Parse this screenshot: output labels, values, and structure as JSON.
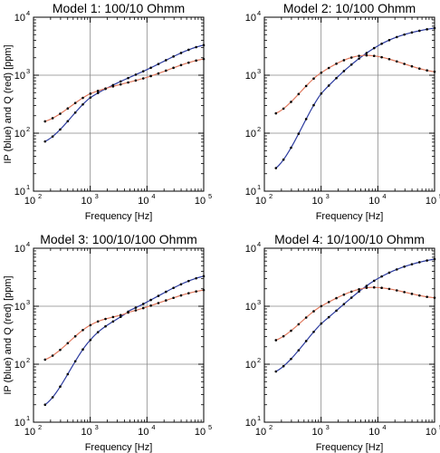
{
  "chart_data": [
    {
      "type": "line",
      "title": "Model 1: 100/10 Ohmm",
      "xlabel": "Frequency [Hz]",
      "ylabel": "IP (blue) and Q (red) [ppm]",
      "xscale": "log",
      "yscale": "log",
      "xlim": [
        100,
        100000
      ],
      "ylim": [
        10,
        10000
      ],
      "xticks": [
        {
          "base": "10",
          "exp": "2"
        },
        {
          "base": "10",
          "exp": "3"
        },
        {
          "base": "10",
          "exp": "4"
        },
        {
          "base": "10",
          "exp": "5"
        }
      ],
      "yticks": [
        {
          "base": "10",
          "exp": "1"
        },
        {
          "base": "10",
          "exp": "2"
        },
        {
          "base": "10",
          "exp": "3"
        },
        {
          "base": "10",
          "exp": "4"
        }
      ],
      "grid": true,
      "series": [
        {
          "name": "IP",
          "color": "#2b3a9e",
          "x": [
            160,
            1000,
            10000,
            100000
          ],
          "y": [
            72,
            410,
            1250,
            3300
          ]
        },
        {
          "name": "Q",
          "color": "#e07a5f",
          "x": [
            160,
            1000,
            10000,
            100000
          ],
          "y": [
            160,
            480,
            920,
            1900
          ]
        }
      ]
    },
    {
      "type": "line",
      "title": "Model 2: 10/100 Ohmm",
      "xlabel": "Frequency [Hz]",
      "ylabel": "",
      "xscale": "log",
      "yscale": "log",
      "xlim": [
        100,
        100000
      ],
      "ylim": [
        10,
        10000
      ],
      "xticks": [
        {
          "base": "10",
          "exp": "2"
        },
        {
          "base": "10",
          "exp": "3"
        },
        {
          "base": "10",
          "exp": "4"
        },
        {
          "base": "10",
          "exp": "5"
        }
      ],
      "yticks": [
        {
          "base": "10",
          "exp": "1"
        },
        {
          "base": "10",
          "exp": "2"
        },
        {
          "base": "10",
          "exp": "3"
        },
        {
          "base": "10",
          "exp": "4"
        }
      ],
      "grid": true,
      "series": [
        {
          "name": "IP",
          "color": "#2b3a9e",
          "x": [
            160,
            1000,
            10000,
            100000
          ],
          "y": [
            25,
            480,
            3200,
            6500
          ]
        },
        {
          "name": "Q",
          "color": "#e07a5f",
          "x": [
            160,
            1000,
            6000,
            100000
          ],
          "y": [
            220,
            1100,
            2200,
            1150
          ]
        }
      ]
    },
    {
      "type": "line",
      "title": "Model 3: 100/10/100 Ohmm",
      "xlabel": "Frequency [Hz]",
      "ylabel": "IP (blue) and Q (red) [ppm]",
      "xscale": "log",
      "yscale": "log",
      "xlim": [
        100,
        100000
      ],
      "ylim": [
        10,
        10000
      ],
      "xticks": [
        {
          "base": "10",
          "exp": "2"
        },
        {
          "base": "10",
          "exp": "3"
        },
        {
          "base": "10",
          "exp": "4"
        },
        {
          "base": "10",
          "exp": "5"
        }
      ],
      "yticks": [
        {
          "base": "10",
          "exp": "1"
        },
        {
          "base": "10",
          "exp": "2"
        },
        {
          "base": "10",
          "exp": "3"
        },
        {
          "base": "10",
          "exp": "4"
        }
      ],
      "grid": true,
      "series": [
        {
          "name": "IP",
          "color": "#2b3a9e",
          "x": [
            160,
            1000,
            5000,
            100000
          ],
          "y": [
            20,
            260,
            850,
            3300
          ]
        },
        {
          "name": "Q",
          "color": "#e07a5f",
          "x": [
            160,
            1000,
            5000,
            100000
          ],
          "y": [
            120,
            470,
            800,
            1900
          ]
        }
      ]
    },
    {
      "type": "line",
      "title": "Model 4: 10/100/10 Ohmm",
      "xlabel": "Frequency [Hz]",
      "ylabel": "",
      "xscale": "log",
      "yscale": "log",
      "xlim": [
        100,
        100000
      ],
      "ylim": [
        10,
        10000
      ],
      "xticks": [
        {
          "base": "10",
          "exp": "2"
        },
        {
          "base": "10",
          "exp": "3"
        },
        {
          "base": "10",
          "exp": "4"
        },
        {
          "base": "10",
          "exp": "5"
        }
      ],
      "yticks": [
        {
          "base": "10",
          "exp": "1"
        },
        {
          "base": "10",
          "exp": "2"
        },
        {
          "base": "10",
          "exp": "3"
        },
        {
          "base": "10",
          "exp": "4"
        }
      ],
      "grid": true,
      "series": [
        {
          "name": "IP",
          "color": "#2b3a9e",
          "x": [
            160,
            1000,
            10000,
            100000
          ],
          "y": [
            75,
            500,
            3000,
            6500
          ]
        },
        {
          "name": "Q",
          "color": "#e07a5f",
          "x": [
            160,
            1000,
            7000,
            100000
          ],
          "y": [
            260,
            1000,
            2100,
            1400
          ]
        }
      ]
    }
  ]
}
